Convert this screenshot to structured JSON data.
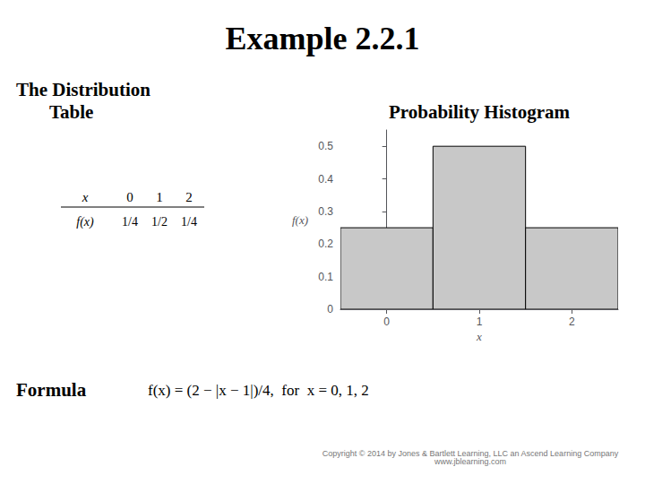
{
  "chart_data": {
    "type": "bar",
    "title": "Example 2.2.1",
    "annotations": [
      "The Distribution",
      "Table",
      "Probability Histogram",
      "Formula",
      "f(x) = (2 − |x − 1|)/4,  for  x = 0, 1, 2",
      "Copyright © 2014 by Jones & Bartlett Learning, LLC an Ascend Learning Company\nwww.jblearning.com"
    ],
    "table": {
      "header": [
        "x",
        "0",
        "1",
        "2"
      ],
      "rows": [
        [
          "f(x)",
          "1/4",
          "1/2",
          "1/4"
        ]
      ]
    },
    "x": [
      0,
      1,
      2
    ],
    "values": [
      0.25,
      0.5,
      0.25
    ],
    "color": "#C8C8C8",
    "xlabel": "x",
    "ylabel": "f(x)",
    "xlim": [
      -0.5,
      2.5
    ],
    "xticks": [
      0,
      1,
      2
    ],
    "ylim": [
      0,
      0.55
    ],
    "yticks": [
      0,
      0.1,
      0.2,
      0.3,
      0.4,
      0.5
    ],
    "grid": false
  }
}
